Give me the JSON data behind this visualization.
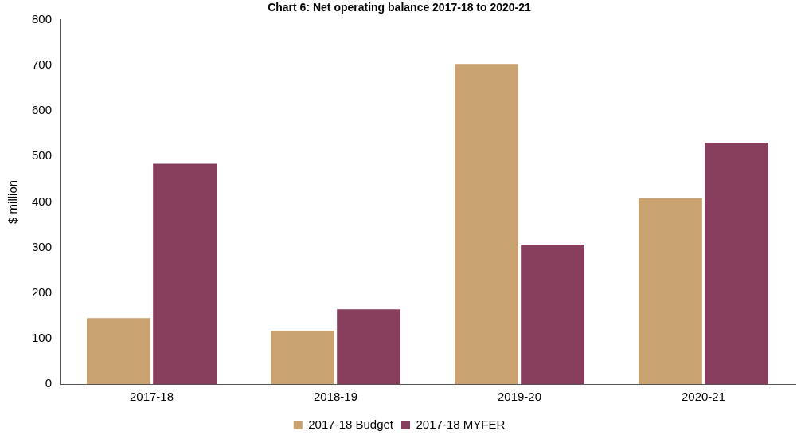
{
  "chart_data": {
    "type": "bar",
    "title": "Chart 6: Net operating balance 2017-18 to 2020-21",
    "ylabel": "$ million",
    "categories": [
      "2017-18",
      "2018-19",
      "2019-20",
      "2020-21"
    ],
    "series": [
      {
        "name": "2017-18 Budget",
        "color": "#c8a270",
        "values": [
          145,
          117,
          703,
          408
        ]
      },
      {
        "name": "2017-18 MYFER",
        "color": "#873e5c",
        "values": [
          484,
          164,
          306,
          530
        ]
      }
    ],
    "ylim": [
      0,
      800
    ],
    "yticks": [
      0,
      100,
      200,
      300,
      400,
      500,
      600,
      700,
      800
    ],
    "grid": false,
    "legend": "bottom"
  }
}
